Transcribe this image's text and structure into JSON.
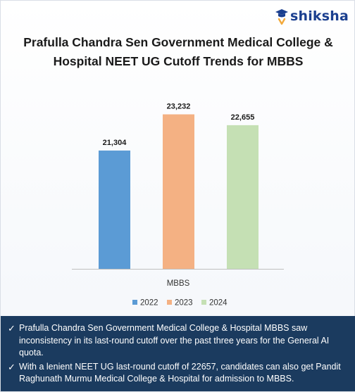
{
  "brand": {
    "name": "shiksha",
    "icon": "graduation-cap-icon"
  },
  "title_lines": [
    "Prafulla Chandra Sen Government Medical College &",
    "Hospital NEET UG Cutoff Trends for MBBS"
  ],
  "chart_data": {
    "type": "bar",
    "categories": [
      "MBBS"
    ],
    "series": [
      {
        "name": "2022",
        "values": [
          21304
        ],
        "label": "21,304",
        "color": "#5b9bd5"
      },
      {
        "name": "2023",
        "values": [
          23232
        ],
        "label": "23,232",
        "color": "#f4b183"
      },
      {
        "name": "2024",
        "values": [
          22655
        ],
        "label": "22,655",
        "color": "#c5e0b4"
      }
    ],
    "title": "Prafulla Chandra Sen Government Medical College & Hospital NEET UG Cutoff Trends for MBBS",
    "xlabel": "",
    "ylabel": "",
    "ylim": [
      15000,
      24000
    ],
    "grid": false,
    "legend": "bottom"
  },
  "footer": {
    "bullets": [
      "Prafulla Chandra Sen Government Medical College & Hospital MBBS saw inconsistency in its last-round cutoff over the past three years for the General AI quota.",
      "With a lenient NEET UG last-round cutoff of 22657, candidates can also get Pandit Raghunath Murmu Medical College & Hospital for admission to MBBS."
    ]
  }
}
